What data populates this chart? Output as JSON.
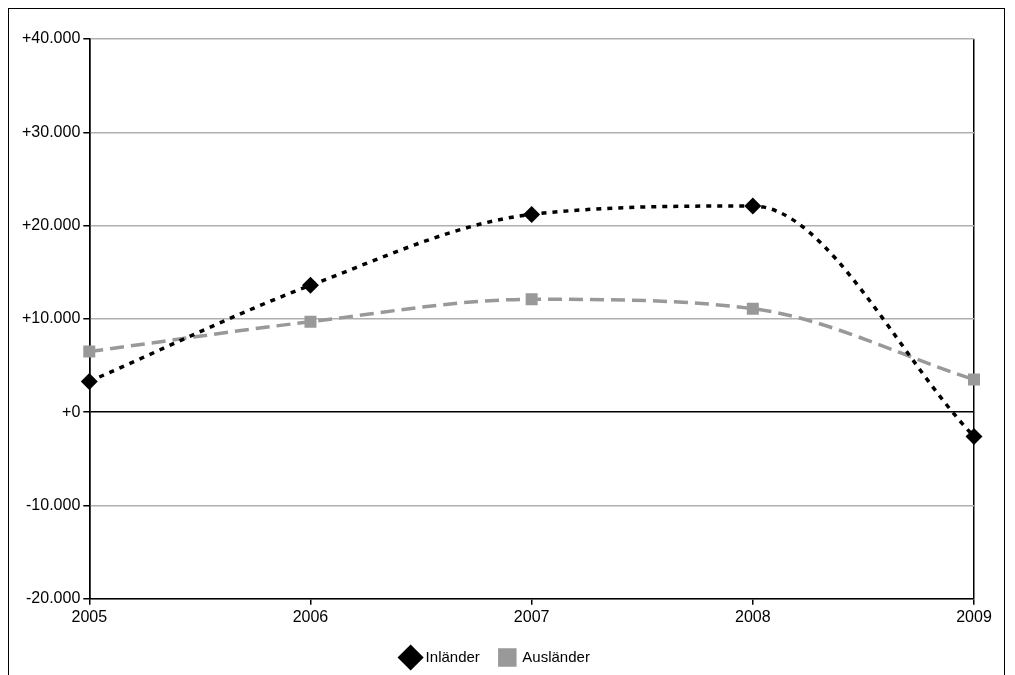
{
  "chart_data": {
    "type": "line",
    "categories": [
      "2005",
      "2006",
      "2007",
      "2008",
      "2009"
    ],
    "series": [
      {
        "name": "Inländer",
        "color": "#000000",
        "marker": "diamond",
        "line_style": "dotted",
        "values": [
          3300,
          13600,
          21200,
          22100,
          -2600
        ]
      },
      {
        "name": "Ausländer",
        "color": "#999999",
        "marker": "square",
        "line_style": "dashed",
        "values": [
          6500,
          9700,
          12100,
          11100,
          3500
        ]
      }
    ],
    "ylim": [
      -20000,
      40000
    ],
    "yticks": [
      {
        "value": -20000,
        "label": "-20.000"
      },
      {
        "value": -10000,
        "label": "-10.000"
      },
      {
        "value": 0,
        "label": "+0"
      },
      {
        "value": 10000,
        "label": "+10.000"
      },
      {
        "value": 20000,
        "label": "+20.000"
      },
      {
        "value": 30000,
        "label": "+30.000"
      },
      {
        "value": 40000,
        "label": "+40.000"
      }
    ],
    "grid": "y",
    "legend": "bottom"
  }
}
